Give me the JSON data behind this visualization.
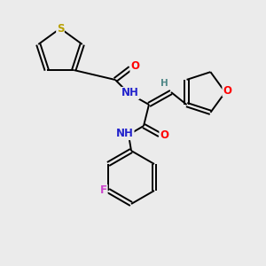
{
  "bg_color": "#ebebeb",
  "atom_colors": {
    "S": "#b8a000",
    "O": "#ff0000",
    "N": "#2222cc",
    "F": "#cc44cc",
    "H": "#508888",
    "C": "#000000"
  },
  "bond_color": "#000000",
  "lw": 1.4,
  "fs": 8.5
}
